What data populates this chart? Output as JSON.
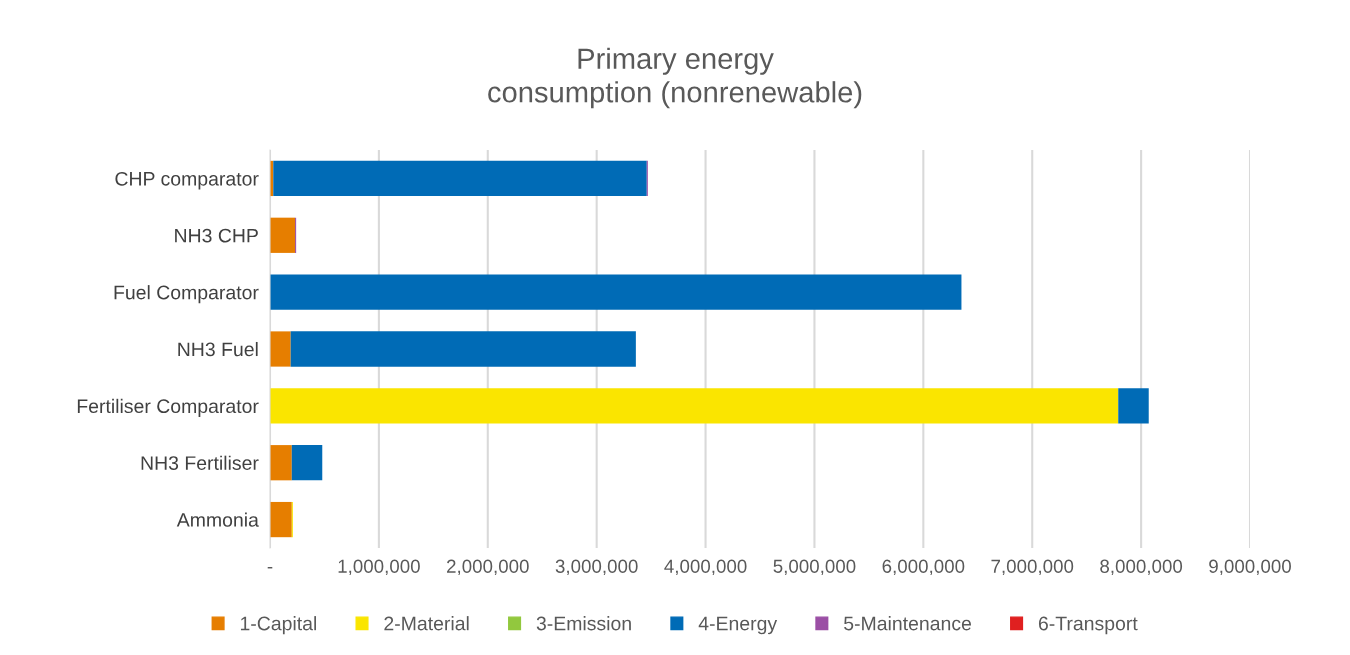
{
  "chart_data": {
    "type": "bar",
    "orientation": "horizontal",
    "stacked": true,
    "title": "Primary energy\nconsumption (nonrenewable)",
    "categories": [
      "CHP comparator",
      "NH3 CHP",
      "Fuel Comparator",
      "NH3 Fuel",
      "Fertiliser Comparator",
      "NH3 Fertiliser",
      "Ammonia"
    ],
    "series": [
      {
        "name": "1-Capital",
        "color": "#e67e00",
        "values": [
          30000,
          230000,
          0,
          190000,
          0,
          200000,
          200000
        ]
      },
      {
        "name": "2-Material",
        "color": "#fae500",
        "values": [
          0,
          0,
          0,
          0,
          7790000,
          0,
          10000
        ]
      },
      {
        "name": "3-Emission",
        "color": "#92c83e",
        "values": [
          0,
          0,
          0,
          0,
          0,
          0,
          0
        ]
      },
      {
        "name": "4-Energy",
        "color": "#006bb6",
        "values": [
          3430000,
          0,
          6350000,
          3170000,
          280000,
          280000,
          0
        ]
      },
      {
        "name": "5-Maintenance",
        "color": "#9b4fa5",
        "values": [
          10000,
          10000,
          0,
          0,
          0,
          0,
          0
        ]
      },
      {
        "name": "6-Transport",
        "color": "#e02020",
        "values": [
          0,
          0,
          0,
          0,
          0,
          0,
          0
        ]
      }
    ],
    "xlim": [
      0,
      9000000
    ],
    "xticks": [
      {
        "value": 0,
        "label": "-"
      },
      {
        "value": 1000000,
        "label": "1,000,000"
      },
      {
        "value": 2000000,
        "label": "2,000,000"
      },
      {
        "value": 3000000,
        "label": "3,000,000"
      },
      {
        "value": 4000000,
        "label": "4,000,000"
      },
      {
        "value": 5000000,
        "label": "5,000,000"
      },
      {
        "value": 6000000,
        "label": "6,000,000"
      },
      {
        "value": 7000000,
        "label": "7,000,000"
      },
      {
        "value": 8000000,
        "label": "8,000,000"
      },
      {
        "value": 9000000,
        "label": "9,000,000"
      }
    ],
    "grid": "x",
    "legend": "bottom"
  }
}
